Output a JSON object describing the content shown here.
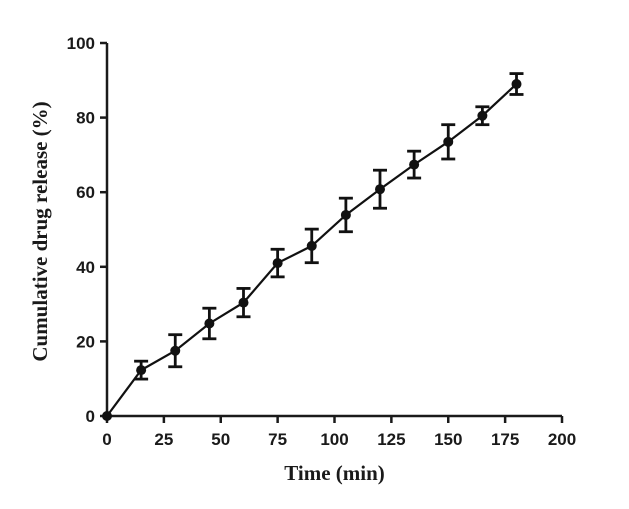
{
  "chart_data": {
    "type": "line",
    "title": "",
    "xlabel": "Time (min)",
    "ylabel": "Cumulative drug release (%)",
    "xlim": [
      0,
      200
    ],
    "ylim": [
      0,
      100
    ],
    "x_ticks": [
      0,
      25,
      50,
      75,
      100,
      125,
      150,
      175,
      200
    ],
    "y_ticks": [
      0,
      20,
      40,
      60,
      80,
      100
    ],
    "grid": false,
    "legend": "none",
    "series": [
      {
        "x": [
          0,
          15,
          30,
          45,
          60,
          75,
          90,
          105,
          120,
          135,
          150,
          165,
          180
        ],
        "y": [
          0,
          12.3,
          17.5,
          24.8,
          30.4,
          41.0,
          45.6,
          53.9,
          60.8,
          67.4,
          73.5,
          80.5,
          89.0
        ],
        "error": [
          0,
          2.4,
          4.3,
          4.1,
          3.8,
          3.7,
          4.5,
          4.5,
          5.1,
          3.6,
          4.6,
          2.4,
          2.8
        ]
      }
    ],
    "colors": {
      "line": "#111111",
      "axis": "#1a1a1a"
    }
  }
}
